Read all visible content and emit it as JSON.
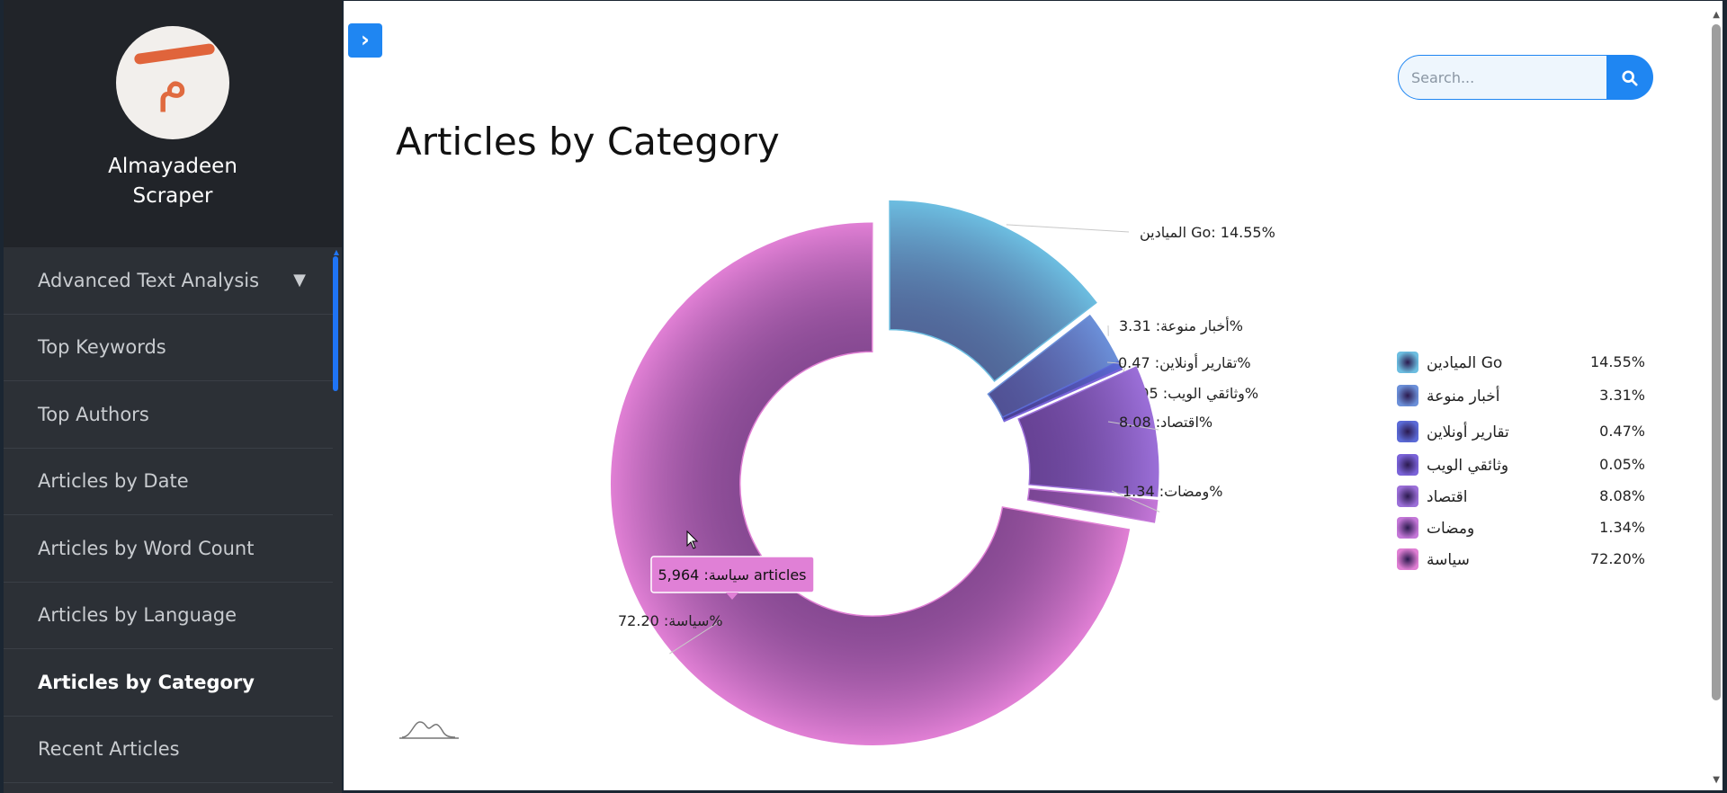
{
  "brand": {
    "name_line1": "Almayadeen",
    "name_line2": "Scraper",
    "logo_icon": "almayadeen-logo"
  },
  "nav": {
    "items": [
      {
        "label": "Advanced Text Analysis",
        "has_caret": true
      },
      {
        "label": "Top Keywords"
      },
      {
        "label": "Top Authors"
      },
      {
        "label": "Articles by Date"
      },
      {
        "label": "Articles by Word Count"
      },
      {
        "label": "Articles by Language"
      },
      {
        "label": "Articles by Category",
        "active": true
      },
      {
        "label": "Recent Articles"
      }
    ],
    "caret_glyph": "▼"
  },
  "toolbar": {
    "toggle_glyph": "›"
  },
  "search": {
    "placeholder": "Search...",
    "value": ""
  },
  "page": {
    "title": "Articles by Category"
  },
  "colors": {
    "accent": "#1f86f2",
    "sidebar_bg": "#2c3036",
    "brand_bg": "#212429"
  },
  "chart_data": {
    "type": "pie",
    "title": "Articles by Category",
    "slices": [
      {
        "name": "الميادين Go",
        "percent": 14.55,
        "percent_text": "14.55%",
        "label": "الميادين Go: 14.55%",
        "color": "#6cbde0"
      },
      {
        "name": "أخبار منوعة",
        "percent": 3.31,
        "percent_text": "3.31%",
        "label": "أخبار منوعة: 3.31%",
        "color": "#6b8fd8"
      },
      {
        "name": "تقارير أونلاين",
        "percent": 0.47,
        "percent_text": "0.47%",
        "label": "تقارير أونلاين: 0.47%",
        "color": "#5b6ad6"
      },
      {
        "name": "وثائقي الويب",
        "percent": 0.05,
        "percent_text": "0.05%",
        "label": "وثائقي الويب: 0.05%",
        "color": "#7a63d8"
      },
      {
        "name": "اقتصاد",
        "percent": 8.08,
        "percent_text": "8.08%",
        "label": "اقتصاد: 8.08%",
        "color": "#9b6fd8"
      },
      {
        "name": "ومضات",
        "percent": 1.34,
        "percent_text": "1.34%",
        "label": "ومضات: 1.34%",
        "color": "#c477d8"
      },
      {
        "name": "سياسة",
        "percent": 72.2,
        "percent_text": "72.20%",
        "label": "سياسة: 72.20%",
        "color": "#e07fd4"
      }
    ],
    "tooltip": {
      "text": "سياسة: 5,964 articles",
      "slice": "سياسة"
    },
    "legend_position": "right",
    "exploded": [
      "الميادين Go",
      "اقتصاد",
      "ومضات",
      "سياسة"
    ]
  }
}
